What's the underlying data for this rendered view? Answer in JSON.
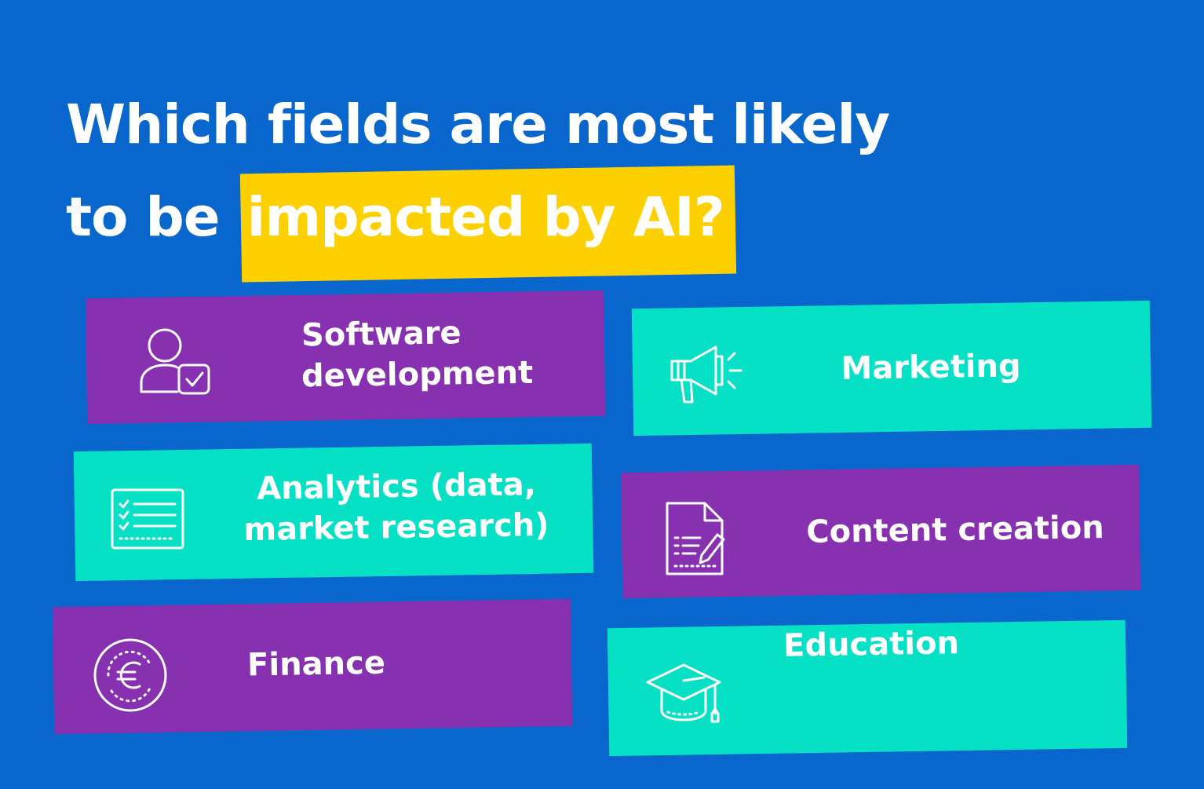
{
  "title": {
    "line1": "Which fields are most likely",
    "line2_prefix": "to be",
    "line2_highlight": "impacted by AI?"
  },
  "colors": {
    "background": "#0866cc",
    "highlight": "#fdd101",
    "purple": "#8731b0",
    "teal": "#06e0c5",
    "text": "#ffffff"
  },
  "fields": [
    {
      "label_line1": "Software",
      "label_line2": "development",
      "icon": "user-check-icon",
      "color": "purple"
    },
    {
      "label_line1": "Marketing",
      "label_line2": "",
      "icon": "megaphone-icon",
      "color": "teal"
    },
    {
      "label_line1": "Analytics (data,",
      "label_line2": "market research)",
      "icon": "checklist-board-icon",
      "color": "teal"
    },
    {
      "label_line1": "Content creation",
      "label_line2": "",
      "icon": "document-pen-icon",
      "color": "purple"
    },
    {
      "label_line1": "Finance",
      "label_line2": "",
      "icon": "euro-coin-icon",
      "color": "purple"
    },
    {
      "label_line1": "Education",
      "label_line2": "",
      "icon": "graduation-cap-icon",
      "color": "teal"
    }
  ]
}
